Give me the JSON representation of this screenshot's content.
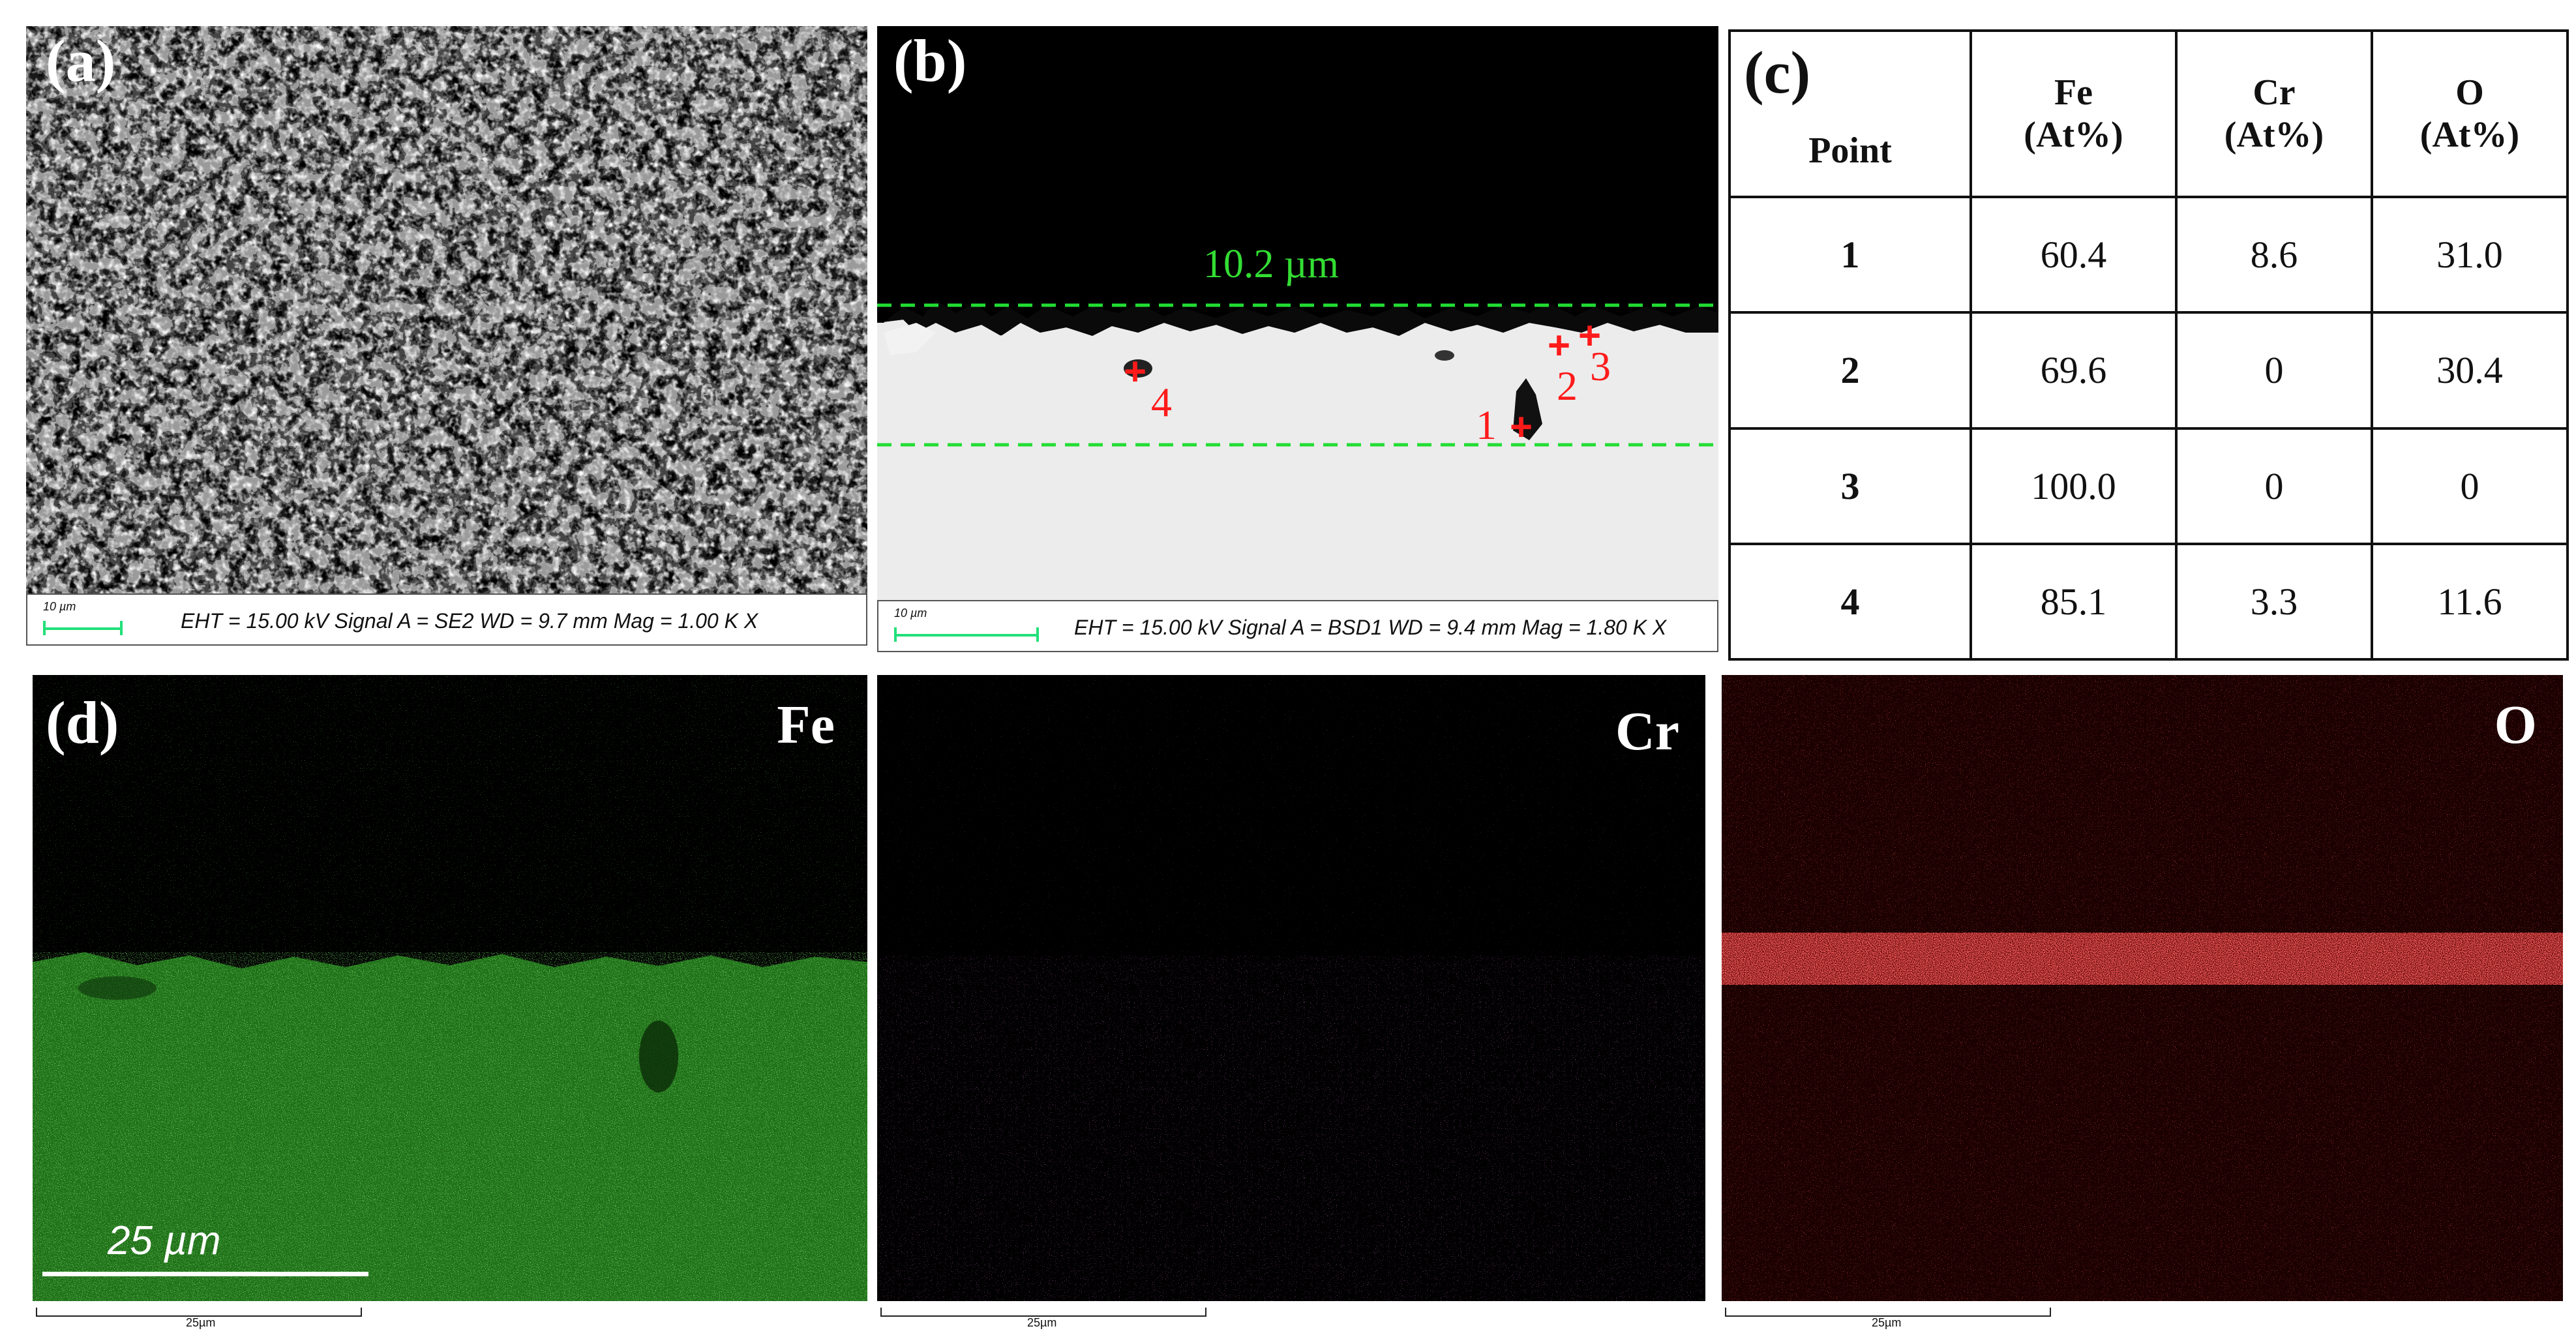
{
  "panel_a": {
    "letter": "(a)",
    "scale_label": "10 µm",
    "info": "EHT = 15.00 kV  Signal A = SE2  WD = 9.7 mm Mag = 1.00 K X"
  },
  "panel_b": {
    "letter": "(b)",
    "thickness_label": "10.2 µm",
    "scale_label": "10 µm",
    "info": "EHT = 15.00 kV  Signal A = BSD1  WD = 9.4 mm Mag = 1.80 K X",
    "points": [
      "1",
      "2",
      "3",
      "4"
    ]
  },
  "panel_c": {
    "letter": "(c)",
    "headers": {
      "point": "Point",
      "fe": "Fe",
      "fe_unit": "(At%)",
      "cr": "Cr",
      "cr_unit": "(At%)",
      "o": "O",
      "o_unit": "(At%)"
    },
    "rows": [
      [
        "1",
        "60.4",
        "8.6",
        "31.0"
      ],
      [
        "2",
        "69.6",
        "0",
        "30.4"
      ],
      [
        "3",
        "100.0",
        "0",
        "0"
      ],
      [
        "4",
        "85.1",
        "3.3",
        "11.6"
      ]
    ]
  },
  "panel_d": {
    "letter": "(d)",
    "scale_label": "25 µm",
    "maps": [
      {
        "element": "Fe",
        "scale": "25µm",
        "color": "#33cc2a"
      },
      {
        "element": "Cr",
        "scale": "25µm",
        "color": "#d23ad2"
      },
      {
        "element": "O",
        "scale": "25µm",
        "color": "#ff2020"
      }
    ]
  }
}
